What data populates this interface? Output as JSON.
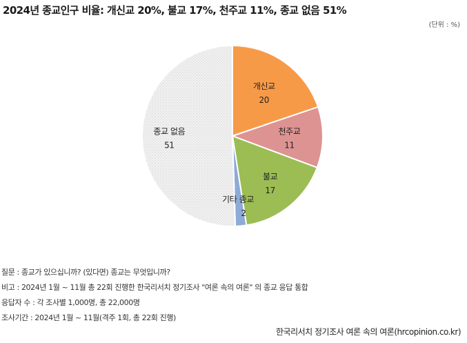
{
  "chart_data": {
    "type": "pie",
    "title": "2024년 종교인구 비율: 개신교 20%, 불교 17%, 천주교 11%, 종교 없음 51%",
    "unit_label": "(단위 : %)",
    "slices": [
      {
        "name": "개신교",
        "value": 20,
        "color": "#f79a48"
      },
      {
        "name": "천주교",
        "value": 11,
        "color": "#dd9391"
      },
      {
        "name": "불교",
        "value": 17,
        "color": "#9bbd54"
      },
      {
        "name": "기타 종교",
        "value": 2,
        "color": "#8eaad6"
      },
      {
        "name": "종교 없음",
        "value": 51,
        "color": "#ededed"
      }
    ]
  },
  "notes": [
    "질문 : 종교가 있으십니까? (있다면) 종교는 무엇입니까?",
    "비고 : 2024년 1월 ~ 11월 총 22회 진행한 한국리서치 정기조사 \"여론 속의 여론\" 의 종교 응답 통합",
    "응답자 수 : 각 조사별 1,000명, 총 22,000명",
    "조사기간 : 2024년 1월 ~ 11월(격주 1회, 총 22회 진행)"
  ],
  "source": "한국리서치 정기조사 여론 속의 여론(hrcopinion.co.kr)"
}
